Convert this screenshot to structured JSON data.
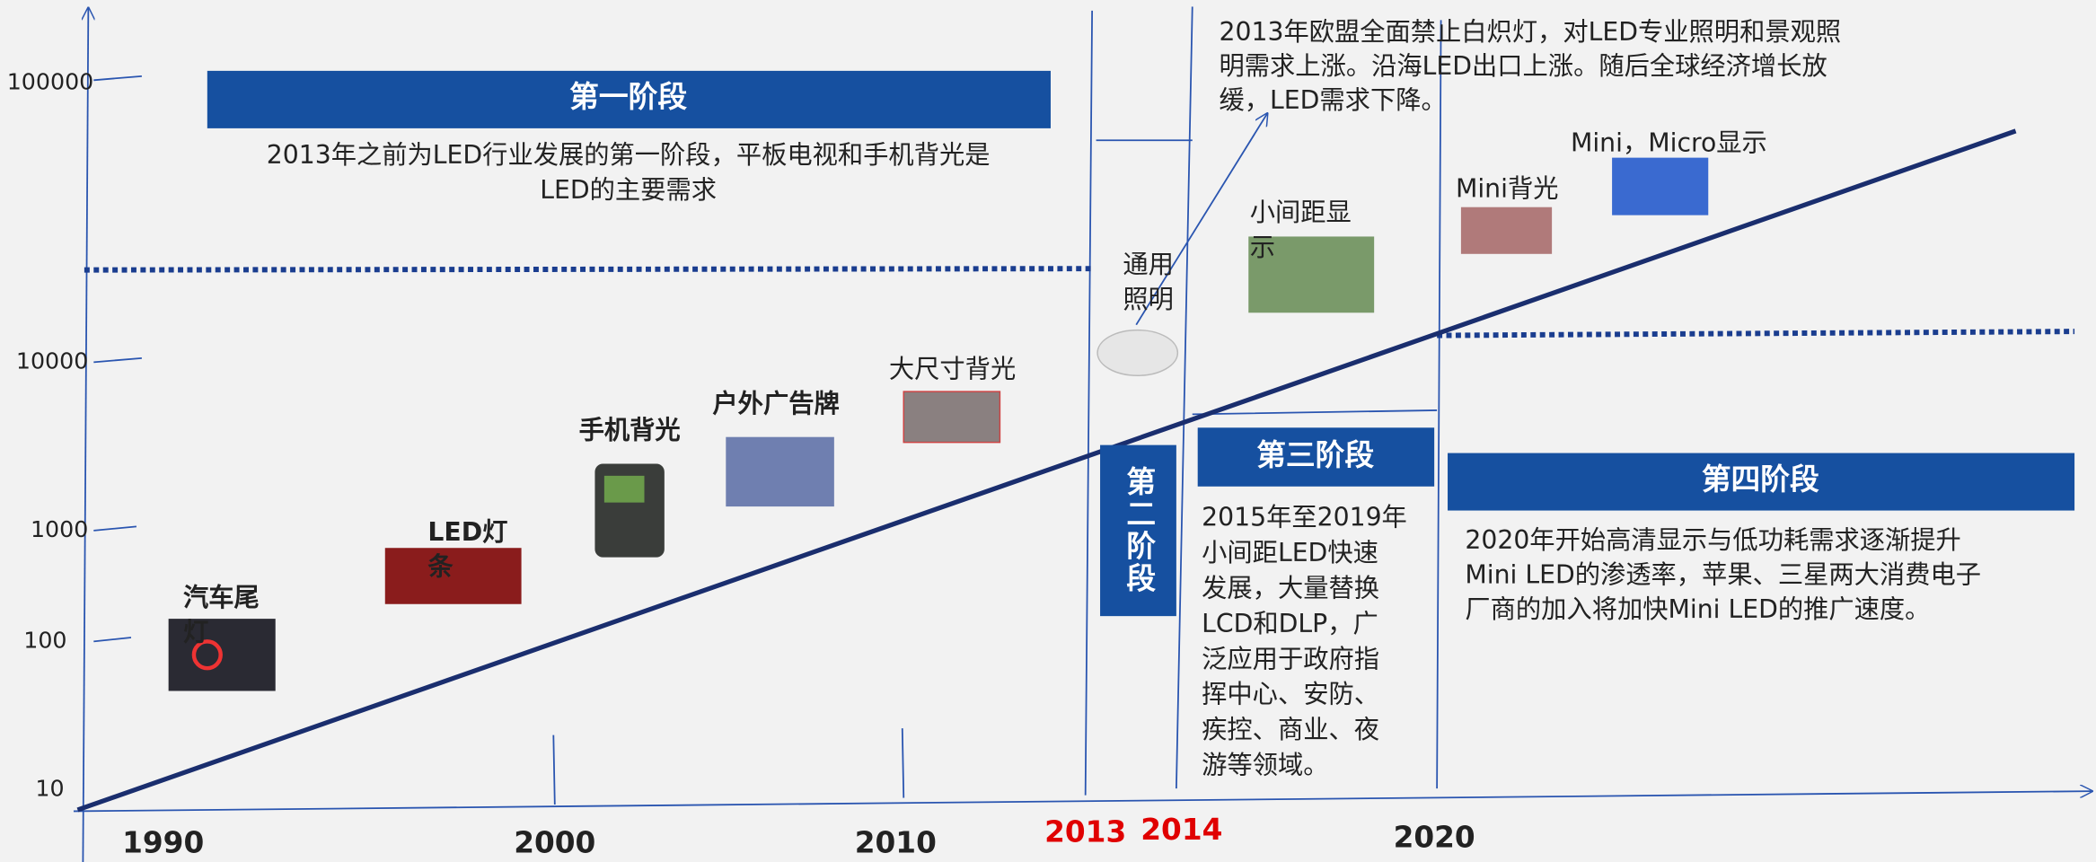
{
  "y_axis": {
    "labels": [
      "100000",
      "10000",
      "1000",
      "100",
      "10"
    ]
  },
  "x_axis": {
    "labels": [
      "1990",
      "2000",
      "2010",
      "2013",
      "2014",
      "2020"
    ]
  },
  "stages": [
    {
      "title": "第一阶段",
      "description": [
        "2013年之前为LED行业发展的第一阶段，平板电视和手机背光是",
        "LED的主要需求"
      ]
    },
    {
      "title": "第二阶段"
    },
    {
      "title": "第三阶段",
      "description": [
        "2015年至2019年",
        "小间距LED快速",
        "发展，大量替换",
        "LCD和DLP，广",
        "泛应用于政府指",
        "挥中心、安防、",
        "疾控、商业、夜",
        "游等领域。"
      ]
    },
    {
      "title": "第四阶段",
      "description": [
        "2020年开始高清显示与低功耗需求逐渐提升",
        "Mini LED的渗透率，苹果、三星两大消费电子",
        "厂商的加入将加快Mini LED的推广速度。"
      ]
    }
  ],
  "note": [
    "2013年欧盟全面禁止白炽灯，对LED专业照明和景观照",
    "明需求上涨。沿海LED出口上涨。随后全球经济增长放",
    "缓，LED需求下降。"
  ],
  "applications": [
    {
      "label": [
        "汽车尾",
        "灯"
      ]
    },
    {
      "label": [
        "LED灯",
        "条"
      ]
    },
    {
      "label": [
        "手机背光"
      ]
    },
    {
      "label": [
        "户外广告牌"
      ]
    },
    {
      "label": [
        "大尺寸背光"
      ]
    },
    {
      "label": [
        "通用",
        "照明"
      ]
    },
    {
      "label": [
        "小间距显",
        "示"
      ]
    },
    {
      "label": [
        "Mini背光"
      ]
    },
    {
      "label": [
        "Mini，Micro显示"
      ]
    }
  ]
}
